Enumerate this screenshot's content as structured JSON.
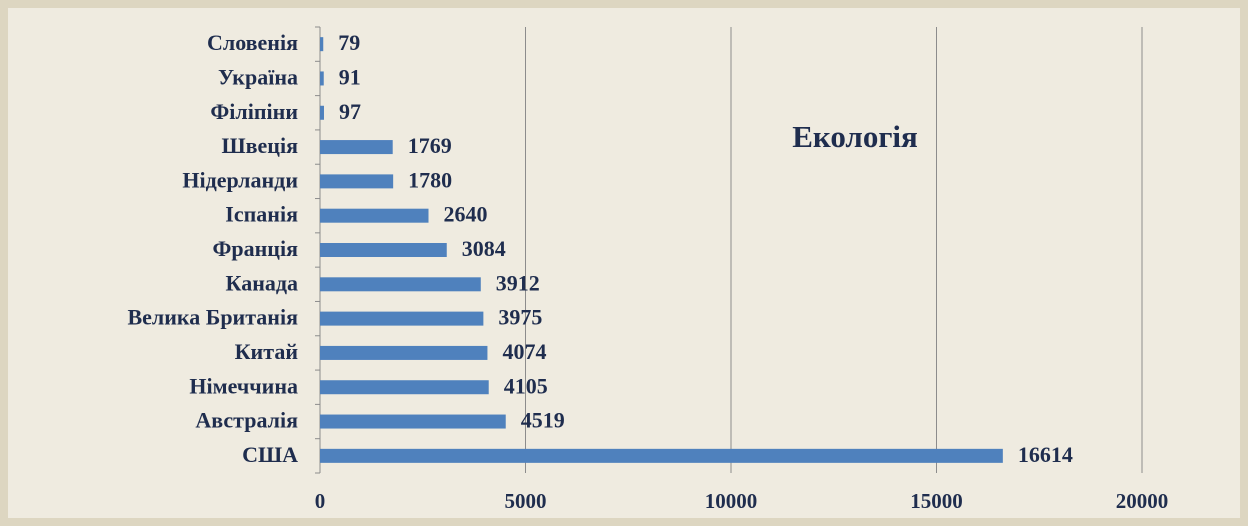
{
  "chart_data": {
    "type": "bar",
    "orientation": "horizontal",
    "title": "Екологія",
    "categories": [
      "Словенія",
      "Україна",
      "Філіпіни",
      "Швеція",
      "Нідерланди",
      "Іспанія",
      "Франція",
      "Канада",
      "Велика Британія",
      "Китай",
      "Німеччина",
      "Австралія",
      "США"
    ],
    "values": [
      79,
      91,
      97,
      1769,
      1780,
      2640,
      3084,
      3912,
      3975,
      4074,
      4105,
      4519,
      16614
    ],
    "color": "#4f81bd",
    "xlim": [
      0,
      20000
    ],
    "xticks": [
      0,
      5000,
      10000,
      15000,
      20000
    ],
    "grid": true
  }
}
